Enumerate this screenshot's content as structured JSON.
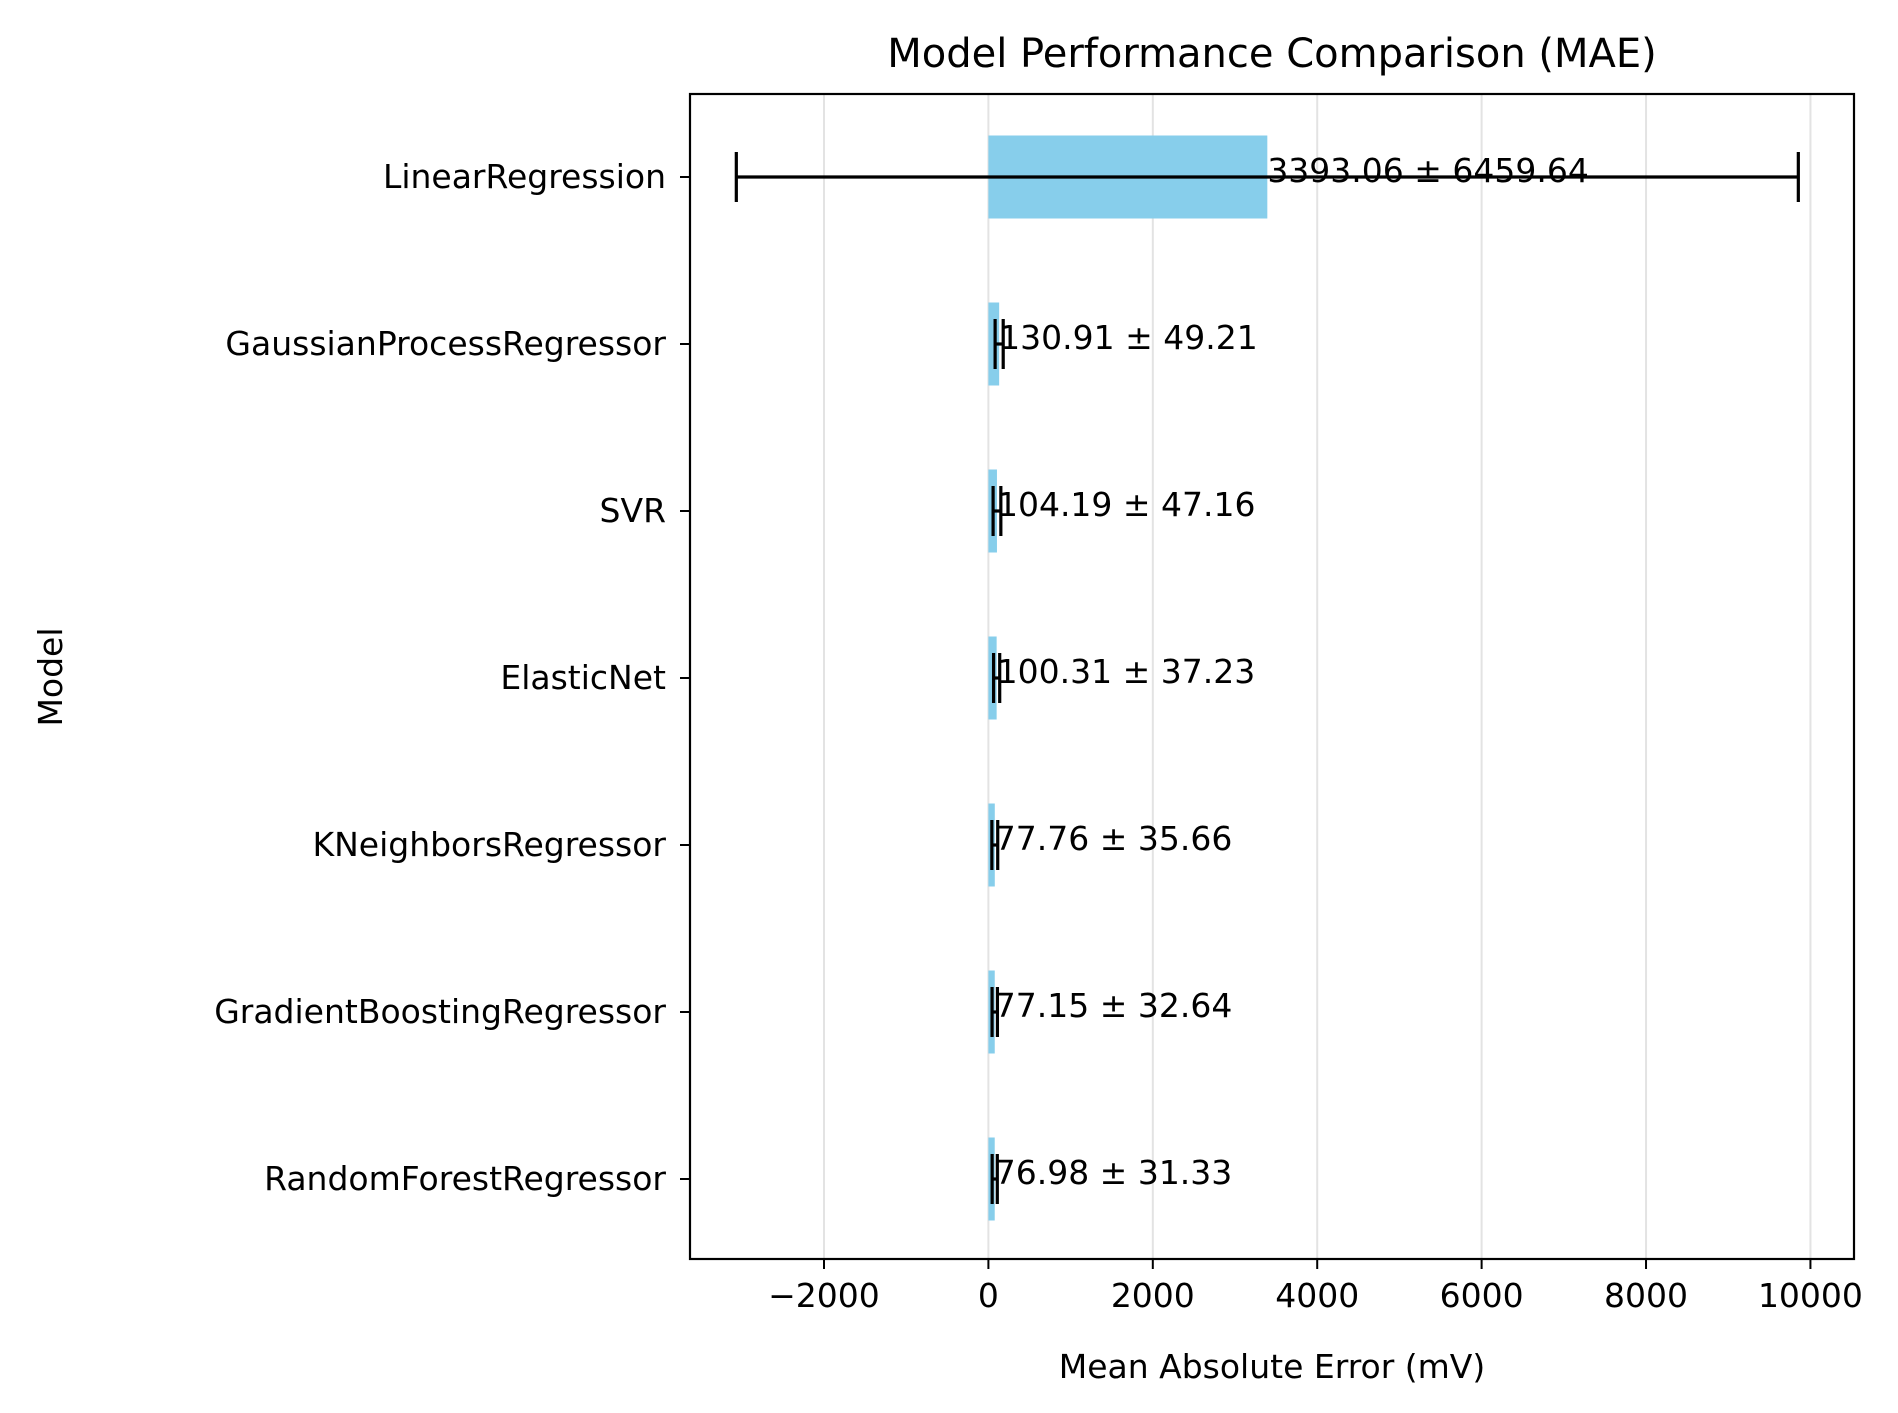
{
  "chart_data": {
    "type": "bar",
    "orientation": "horizontal",
    "title": "Model Performance Comparison (MAE)",
    "xlabel": "Mean Absolute Error (mV)",
    "ylabel": "Model",
    "xlim": [
      -3630,
      10530
    ],
    "xticks": [
      -2000,
      0,
      2000,
      4000,
      6000,
      8000,
      10000
    ],
    "xtick_labels": [
      "−2000",
      "0",
      "2000",
      "4000",
      "6000",
      "8000",
      "10000"
    ],
    "grid": "x",
    "bar_color": "#87ceeb",
    "categories": [
      "LinearRegression",
      "GaussianProcessRegressor",
      "SVR",
      "ElasticNet",
      "KNeighborsRegressor",
      "GradientBoostingRegressor",
      "RandomForestRegressor"
    ],
    "values": [
      3393.06,
      130.91,
      104.19,
      100.31,
      77.76,
      77.15,
      76.98
    ],
    "errors": [
      6459.64,
      49.21,
      47.16,
      37.23,
      35.66,
      32.64,
      31.33
    ],
    "data_labels": [
      "3393.06 ± 6459.64",
      "130.91 ± 49.21",
      "104.19 ± 47.16",
      "100.31 ± 37.23",
      "77.76 ± 35.66",
      "77.15 ± 32.64",
      "76.98 ± 31.33"
    ]
  }
}
